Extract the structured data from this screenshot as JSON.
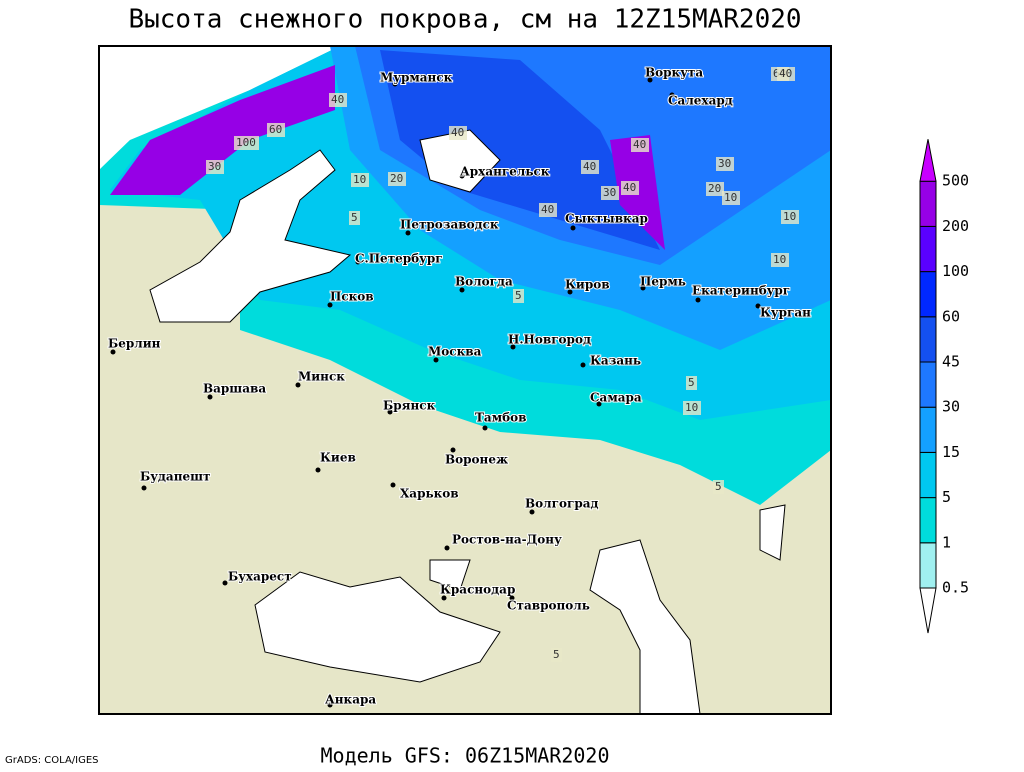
{
  "header": {
    "title": "Высота снежного покрова, см на 12Z15MAR2020"
  },
  "footer": {
    "model": "Модель GFS: 06Z15MAR2020",
    "credit": "GrADS: COLA/IGES"
  },
  "cities": [
    "Мурманск",
    "Воркута",
    "Салехард",
    "Архангельск",
    "Сыктывкар",
    "Петрозаводск",
    "С.Петербург",
    "Вологда",
    "Киров",
    "Пермь",
    "Екатеринбург",
    "Курган",
    "Псков",
    "Берлин",
    "Москва",
    "Н.Новгород",
    "Казань",
    "Варшава",
    "Минск",
    "Брянск",
    "Самара",
    "Тамбов",
    "Киев",
    "Воронеж",
    "Будапешт",
    "Харьков",
    "Волгоград",
    "Ростов-на-Дону",
    "Бухарест",
    "Краснодар",
    "Ставрополь",
    "Анкара"
  ],
  "contour_labels": [
    40,
    60,
    100,
    40,
    30,
    40,
    10,
    20,
    40,
    30,
    20,
    10,
    10,
    10,
    5,
    5,
    5,
    10,
    40,
    40,
    30,
    60,
    40,
    5,
    5
  ],
  "colorbar": {
    "levels": [
      0.5,
      1,
      5,
      15,
      30,
      45,
      60,
      100,
      200,
      500
    ],
    "colors": [
      "#ffffff",
      "#a0f0f0",
      "#00dcdc",
      "#00c8f0",
      "#14a0ff",
      "#1e78ff",
      "#1450f0",
      "#0028ff",
      "#5a00ff",
      "#9600e6",
      "#c800ff"
    ]
  }
}
